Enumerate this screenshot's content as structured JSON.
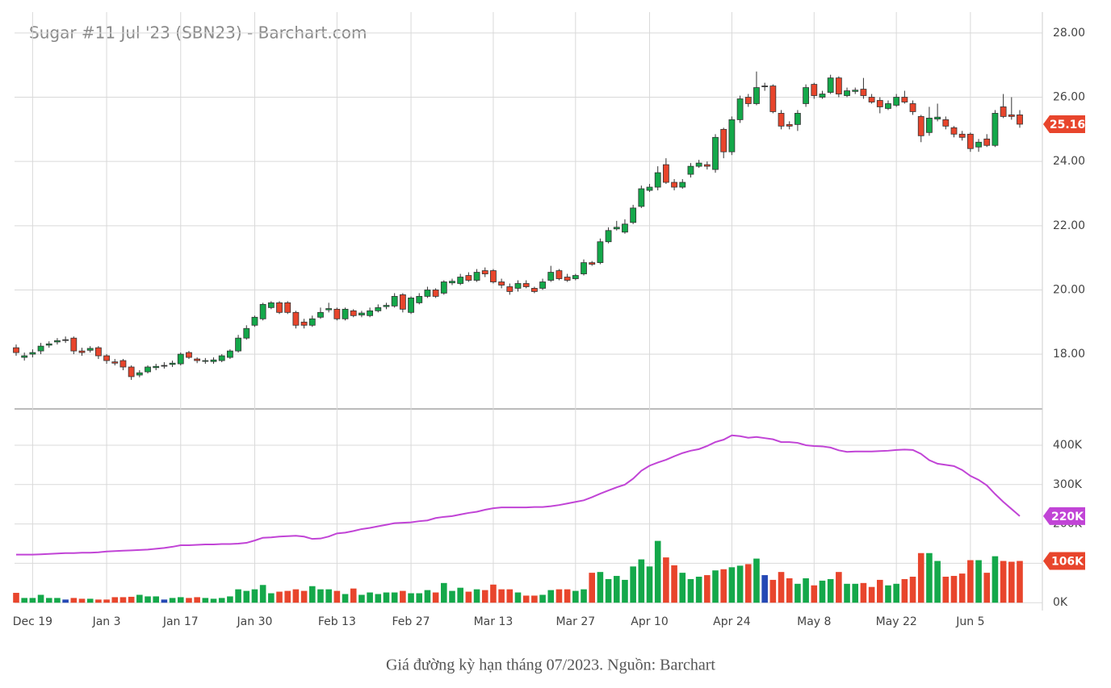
{
  "chart_data": {
    "type": "candlestick",
    "title": "Sugar #11 Jul '23 (SBN23) - Barchart.com",
    "caption": "Giá đường kỳ hạn tháng 07/2023. Nguồn: Barchart",
    "categories": [
      null,
      null,
      "Dec 19",
      null,
      null,
      null,
      null,
      null,
      null,
      null,
      null,
      "Jan 3",
      null,
      null,
      null,
      null,
      null,
      null,
      null,
      null,
      "Jan 17",
      null,
      null,
      null,
      null,
      null,
      null,
      null,
      null,
      "Jan 30",
      null,
      null,
      null,
      null,
      null,
      null,
      null,
      null,
      null,
      "Feb 13",
      null,
      null,
      null,
      null,
      null,
      null,
      null,
      null,
      "Feb 27",
      null,
      null,
      null,
      null,
      null,
      null,
      null,
      null,
      null,
      "Mar 13",
      null,
      null,
      null,
      null,
      null,
      null,
      null,
      null,
      null,
      "Mar 27",
      null,
      null,
      null,
      null,
      null,
      null,
      null,
      null,
      "Apr 10",
      null,
      null,
      null,
      null,
      null,
      null,
      null,
      null,
      null,
      "Apr 24",
      null,
      null,
      null,
      null,
      null,
      null,
      null,
      null,
      null,
      "May 8",
      null,
      null,
      null,
      null,
      null,
      null,
      null,
      null,
      null,
      "May 22",
      null,
      null,
      null,
      null,
      null,
      null,
      null,
      null,
      "Jun 5",
      null,
      null,
      null,
      null,
      null,
      null
    ],
    "open": [
      18.2,
      17.9,
      18.0,
      18.1,
      18.28,
      18.38,
      18.45,
      18.5,
      18.1,
      18.12,
      18.2,
      17.95,
      17.76,
      17.8,
      17.6,
      17.35,
      17.45,
      17.58,
      17.65,
      17.68,
      17.7,
      18.05,
      17.85,
      17.78,
      17.77,
      17.8,
      17.9,
      18.1,
      18.5,
      18.9,
      19.1,
      19.45,
      19.6,
      19.6,
      19.3,
      19.0,
      18.9,
      19.15,
      19.38,
      19.4,
      19.1,
      19.35,
      19.22,
      19.2,
      19.35,
      19.48,
      19.5,
      19.85,
      19.3,
      19.6,
      19.8,
      20.0,
      19.9,
      20.22,
      20.2,
      20.45,
      20.3,
      20.6,
      20.6,
      20.25,
      20.1,
      20.05,
      20.2,
      20.05,
      20.05,
      20.3,
      20.6,
      20.4,
      20.35,
      20.5,
      20.85,
      20.85,
      21.5,
      21.9,
      21.8,
      22.1,
      22.6,
      23.1,
      23.2,
      23.9,
      23.35,
      23.2,
      23.6,
      23.85,
      23.9,
      23.75,
      25.0,
      24.3,
      25.3,
      26.0,
      25.8,
      26.35,
      26.35,
      25.5,
      25.15,
      25.15,
      25.8,
      26.4,
      26.0,
      26.15,
      26.6,
      26.05,
      26.18,
      26.25,
      26.0,
      25.9,
      25.65,
      25.75,
      26.0,
      25.8,
      25.4,
      24.9,
      25.32,
      25.3,
      25.05,
      24.85,
      24.85,
      24.45,
      24.7,
      24.5,
      25.7,
      25.45,
      25.45
    ],
    "high": [
      18.3,
      18.05,
      18.15,
      18.35,
      18.4,
      18.5,
      18.55,
      18.55,
      18.2,
      18.25,
      18.25,
      18.0,
      17.85,
      17.85,
      17.65,
      17.5,
      17.65,
      17.7,
      17.75,
      17.8,
      18.05,
      18.1,
      17.9,
      17.88,
      17.9,
      18.0,
      18.15,
      18.6,
      18.9,
      19.2,
      19.6,
      19.65,
      19.65,
      19.65,
      19.35,
      19.1,
      19.2,
      19.45,
      19.6,
      19.45,
      19.45,
      19.4,
      19.35,
      19.45,
      19.55,
      19.6,
      19.9,
      19.9,
      19.8,
      19.9,
      20.1,
      20.05,
      20.3,
      20.35,
      20.5,
      20.55,
      20.65,
      20.7,
      20.65,
      20.35,
      20.2,
      20.3,
      20.3,
      20.1,
      20.35,
      20.75,
      20.65,
      20.5,
      20.5,
      20.95,
      20.9,
      21.6,
      21.95,
      22.15,
      22.2,
      22.65,
      23.25,
      23.3,
      23.85,
      24.1,
      23.45,
      23.45,
      23.95,
      24.05,
      24.0,
      24.85,
      25.05,
      25.4,
      26.05,
      26.1,
      26.8,
      26.45,
      26.4,
      25.6,
      25.25,
      25.6,
      26.4,
      26.45,
      26.2,
      26.7,
      26.65,
      26.3,
      26.3,
      26.6,
      26.1,
      26.0,
      25.9,
      26.1,
      26.2,
      25.9,
      25.45,
      25.7,
      25.8,
      25.4,
      25.1,
      24.95,
      24.9,
      24.7,
      24.85,
      25.6,
      26.1,
      26.0,
      25.6
    ],
    "low": [
      17.95,
      17.8,
      17.9,
      18.0,
      18.2,
      18.3,
      18.35,
      18.0,
      17.95,
      18.05,
      17.85,
      17.7,
      17.65,
      17.5,
      17.2,
      17.28,
      17.4,
      17.5,
      17.55,
      17.6,
      17.65,
      17.85,
      17.72,
      17.7,
      17.7,
      17.75,
      17.85,
      18.05,
      18.45,
      18.85,
      19.05,
      19.4,
      19.25,
      19.25,
      18.8,
      18.8,
      18.85,
      19.1,
      19.3,
      19.05,
      19.05,
      19.15,
      19.15,
      19.15,
      19.3,
      19.4,
      19.45,
      19.3,
      19.25,
      19.55,
      19.75,
      19.75,
      19.85,
      20.15,
      20.15,
      20.25,
      20.25,
      20.4,
      20.2,
      20.05,
      19.85,
      19.95,
      20.05,
      19.9,
      20.0,
      20.25,
      20.3,
      20.25,
      20.3,
      20.45,
      20.75,
      20.8,
      21.45,
      21.85,
      21.75,
      22.05,
      22.55,
      23.05,
      23.1,
      23.3,
      23.1,
      23.15,
      23.5,
      23.8,
      23.75,
      23.65,
      24.1,
      24.2,
      25.2,
      25.7,
      25.75,
      26.2,
      25.5,
      25.0,
      25.0,
      24.95,
      25.7,
      25.95,
      25.95,
      26.1,
      26.0,
      26.0,
      26.1,
      25.95,
      25.8,
      25.5,
      25.6,
      25.7,
      25.8,
      25.45,
      24.6,
      24.8,
      25.25,
      25.0,
      24.75,
      24.65,
      24.3,
      24.3,
      24.45,
      24.45,
      25.35,
      25.3,
      25.05
    ],
    "close": [
      18.05,
      17.95,
      18.05,
      18.25,
      18.32,
      18.42,
      18.45,
      18.1,
      18.05,
      18.18,
      17.95,
      17.8,
      17.72,
      17.6,
      17.3,
      17.42,
      17.6,
      17.62,
      17.65,
      17.72,
      18.0,
      17.9,
      17.8,
      17.8,
      17.82,
      17.95,
      18.1,
      18.5,
      18.8,
      19.15,
      19.55,
      19.6,
      19.3,
      19.3,
      18.9,
      18.9,
      19.1,
      19.3,
      19.42,
      19.1,
      19.4,
      19.2,
      19.28,
      19.35,
      19.45,
      19.52,
      19.8,
      19.4,
      19.75,
      19.8,
      20.0,
      19.8,
      20.25,
      20.27,
      20.4,
      20.3,
      20.55,
      20.5,
      20.25,
      20.15,
      19.95,
      20.2,
      20.1,
      19.95,
      20.25,
      20.55,
      20.35,
      20.3,
      20.45,
      20.85,
      20.8,
      21.5,
      21.85,
      21.95,
      22.05,
      22.55,
      23.15,
      23.2,
      23.65,
      23.35,
      23.2,
      23.35,
      23.85,
      23.95,
      23.85,
      24.75,
      24.3,
      25.3,
      25.95,
      25.8,
      26.3,
      26.35,
      25.55,
      25.1,
      25.1,
      25.5,
      26.3,
      26.05,
      26.1,
      26.6,
      26.1,
      26.2,
      26.22,
      26.05,
      25.85,
      25.7,
      25.8,
      26.0,
      25.85,
      25.55,
      24.8,
      25.35,
      25.38,
      25.1,
      24.85,
      24.75,
      24.4,
      24.6,
      24.5,
      25.5,
      25.4,
      25.4,
      25.16
    ],
    "ylim": [
      16.32,
      28.65
    ],
    "yticks": [
      {
        "value": 18,
        "label": "18.00"
      },
      {
        "value": 20,
        "label": "20.00"
      },
      {
        "value": 22,
        "label": "22.00"
      },
      {
        "value": 24,
        "label": "24.00"
      },
      {
        "value": 26,
        "label": "26.00"
      },
      {
        "value": 28,
        "label": "28.00"
      }
    ],
    "volume": {
      "values": [
        25,
        12,
        12,
        20,
        12,
        12,
        8,
        12,
        10,
        10,
        8,
        8,
        14,
        14,
        15,
        20,
        16,
        16,
        8,
        12,
        14,
        12,
        14,
        12,
        10,
        12,
        16,
        34,
        30,
        34,
        45,
        24,
        28,
        30,
        34,
        30,
        42,
        34,
        34,
        30,
        22,
        36,
        20,
        26,
        22,
        26,
        26,
        30,
        24,
        24,
        32,
        26,
        50,
        30,
        38,
        28,
        34,
        32,
        46,
        34,
        34,
        26,
        18,
        18,
        20,
        32,
        34,
        34,
        30,
        34,
        76,
        78,
        60,
        68,
        58,
        92,
        110,
        92,
        157,
        115,
        95,
        76,
        60,
        66,
        70,
        82,
        85,
        90,
        94,
        98,
        112,
        70,
        58,
        78,
        62,
        48,
        62,
        44,
        56,
        60,
        78,
        48,
        48,
        50,
        40,
        58,
        44,
        48,
        60,
        66,
        126,
        126,
        106,
        66,
        68,
        74,
        108,
        108,
        76,
        118,
        106,
        104,
        106
      ],
      "last_label": "106K"
    },
    "open_interest": {
      "color": "#c144d6",
      "values": [
        122,
        122,
        122,
        123,
        124,
        125,
        126,
        126,
        127,
        127,
        128,
        130,
        131,
        132,
        133,
        134,
        135,
        137,
        139,
        142,
        146,
        146,
        147,
        148,
        148,
        149,
        149,
        150,
        152,
        158,
        165,
        166,
        168,
        169,
        170,
        168,
        162,
        163,
        168,
        176,
        178,
        182,
        187,
        190,
        194,
        198,
        202,
        203,
        204,
        207,
        209,
        215,
        218,
        220,
        224,
        228,
        231,
        236,
        240,
        242,
        242,
        242,
        242,
        243,
        243,
        245,
        248,
        252,
        256,
        260,
        268,
        277,
        285,
        293,
        300,
        315,
        335,
        348,
        356,
        363,
        372,
        380,
        386,
        390,
        398,
        408,
        414,
        425,
        423,
        419,
        421,
        418,
        415,
        408,
        408,
        406,
        400,
        398,
        397,
        394,
        387,
        383,
        384,
        384,
        384,
        385,
        386,
        388,
        389,
        388,
        378,
        362,
        353,
        350,
        347,
        337,
        322,
        312,
        298,
        276,
        256,
        238,
        220
      ],
      "last_label": "220K"
    },
    "y2lim": [
      -20,
      486
    ],
    "y2ticks": [
      {
        "value": 0,
        "label": "0K"
      },
      {
        "value": 100,
        "label": "100K"
      },
      {
        "value": 200,
        "label": "200K"
      },
      {
        "value": 300,
        "label": "300K"
      },
      {
        "value": 400,
        "label": "400K"
      }
    ],
    "colors": {
      "up": "#14a84a",
      "down": "#e8452c",
      "flat": "#2448b5"
    },
    "grid": true
  }
}
